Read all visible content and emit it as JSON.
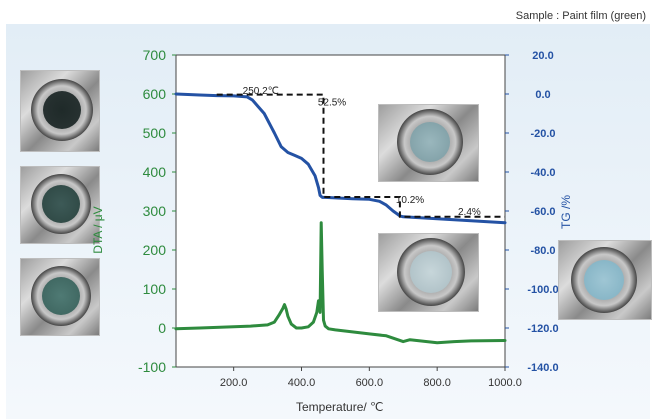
{
  "sample_label": "Sample : Paint film (green)",
  "chart_data": {
    "type": "line",
    "xlabel": "Temperature/ ℃",
    "ylabel_left": "DTA / μV",
    "ylabel_right": "TG /%",
    "xlim": [
      30,
      1000
    ],
    "ylim_left": [
      -100,
      700
    ],
    "ylim_right": [
      -140,
      20
    ],
    "x_ticks": [
      "200.0",
      "400.0",
      "600.0",
      "800.0",
      "1000.0"
    ],
    "y_left_ticks": [
      "-100",
      "0",
      "100",
      "200",
      "300",
      "400",
      "500",
      "600",
      "700"
    ],
    "y_right_ticks": [
      "-140.0",
      "-120.0",
      "-100.0",
      "-80.0",
      "-60.0",
      "-40.0",
      "-20.0",
      "0.0",
      "20.0"
    ],
    "colors": {
      "dta": "#2e8b3e",
      "tg": "#2452a4",
      "steps": "#111111"
    },
    "series": [
      {
        "axis": "right",
        "x": [
          30,
          100,
          150,
          200,
          240,
          255,
          270,
          290,
          320,
          340,
          360,
          380,
          400,
          420,
          440,
          450,
          455,
          458,
          462,
          470,
          500,
          550,
          600,
          630,
          650,
          670,
          690,
          700,
          750,
          800,
          850,
          900,
          950,
          1000
        ],
        "y": [
          0,
          -0.5,
          -0.8,
          -1,
          -1.5,
          -3,
          -6,
          -10,
          -20,
          -27,
          -30,
          -31.5,
          -33,
          -36,
          -42,
          -48,
          -52,
          -52.5,
          -53,
          -53,
          -53.3,
          -53.7,
          -54,
          -55,
          -57,
          -60,
          -62.5,
          -63,
          -63.5,
          -64,
          -64.5,
          -65,
          -65.5,
          -66
        ]
      },
      {
        "axis": "left",
        "x": [
          30,
          100,
          200,
          250,
          300,
          320,
          335,
          345,
          350,
          355,
          360,
          370,
          385,
          400,
          420,
          435,
          445,
          450,
          455,
          458,
          461,
          465,
          470,
          480,
          500,
          550,
          600,
          650,
          700,
          720,
          800,
          850,
          900,
          1000
        ],
        "y": [
          -2,
          0,
          3,
          5,
          8,
          15,
          35,
          50,
          60,
          48,
          30,
          10,
          0,
          0,
          3,
          15,
          40,
          70,
          40,
          270,
          150,
          20,
          5,
          -2,
          -5,
          -10,
          -15,
          -20,
          -35,
          -30,
          -38,
          -35,
          -33,
          -32
        ]
      }
    ],
    "annotations": [
      {
        "text": "250.2℃",
        "x": 280,
        "y": 0
      },
      {
        "text": "52.5%",
        "x": 490,
        "y": -6
      },
      {
        "text": "10.2%",
        "x": 720,
        "y": -56
      },
      {
        "text": "2.4%",
        "x": 895,
        "y": -62
      }
    ],
    "step_lines": [
      [
        [
          150,
          -0.3
        ],
        [
          465,
          -0.3
        ],
        [
          465,
          -52.8
        ],
        [
          690,
          -52.8
        ],
        [
          690,
          -63
        ],
        [
          1000,
          -63
        ]
      ]
    ]
  }
}
